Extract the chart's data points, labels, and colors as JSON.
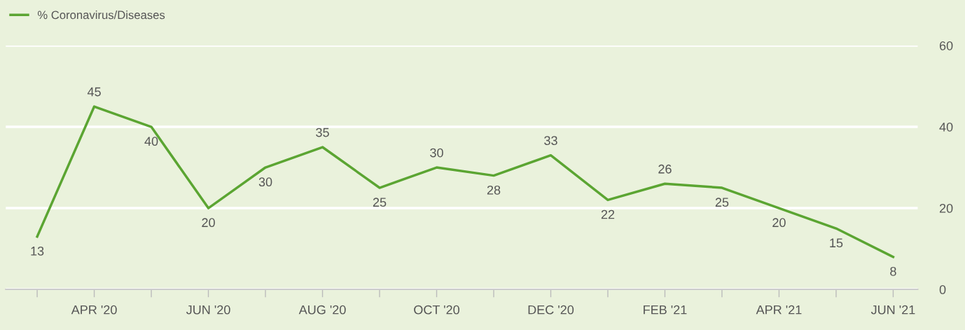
{
  "chart_data": {
    "type": "line",
    "categories": [
      null,
      "APR '20",
      null,
      "JUN '20",
      null,
      "AUG '20",
      null,
      "OCT '20",
      null,
      "DEC '20",
      null,
      "FEB '21",
      null,
      "APR '21",
      null,
      "JUN '21"
    ],
    "series": [
      {
        "name": "% Coronavirus/Diseases",
        "color": "#5ba532",
        "values": [
          13,
          45,
          40,
          20,
          30,
          35,
          25,
          30,
          28,
          33,
          22,
          26,
          25,
          20,
          15,
          8
        ]
      }
    ],
    "ylim": [
      0,
      60
    ],
    "yticks": [
      0,
      20,
      40,
      60
    ],
    "grid": "y",
    "legend": "top left",
    "data_labels": true,
    "marker": "none",
    "line_style": "solid"
  }
}
